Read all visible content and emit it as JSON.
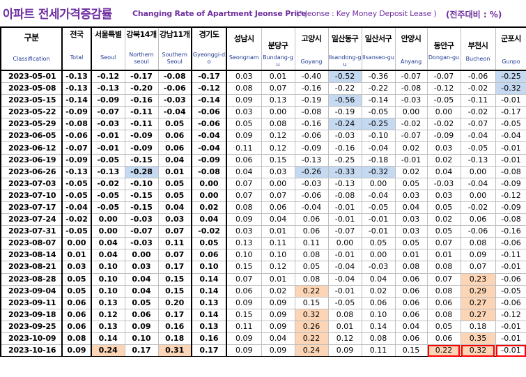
{
  "title": {
    "korean": "아파트 전세가격증감률",
    "english": "Changing Rate of Apartment Jeonse Price",
    "note": "(* Jeonse : Key Money Deposit Lease )",
    "unit": "(전주대비 : %)"
  },
  "columns": [
    {
      "key": "date",
      "ko": "구분",
      "en": "Classification"
    },
    {
      "key": "nat",
      "ko": "전국",
      "en": "Total"
    },
    {
      "key": "seoul",
      "ko": "서울특별",
      "en": "Seoul"
    },
    {
      "key": "north",
      "ko": "강북14개",
      "en": "Northern seoul"
    },
    {
      "key": "south",
      "ko": "강남11개",
      "en": "Southern Seoul"
    },
    {
      "key": "gg",
      "ko": "경기도",
      "en": "Gyeonggi-do"
    },
    {
      "key": "sn",
      "ko": "성남시",
      "en": "Seongnam"
    },
    {
      "key": "bd",
      "ko": "분당구",
      "en": "Bundang-gu"
    },
    {
      "key": "gy",
      "ko": "고양시",
      "en": "Goyang"
    },
    {
      "key": "id",
      "ko": "일산동구",
      "en": "Ilsandong-gu"
    },
    {
      "key": "is",
      "ko": "일산서구",
      "en": "Ilsanseo-gu"
    },
    {
      "key": "ay",
      "ko": "안양시",
      "en": "Anyang"
    },
    {
      "key": "da",
      "ko": "동안구",
      "en": "Dongan-gu"
    },
    {
      "key": "bc",
      "ko": "부천시",
      "en": "Bucheon"
    },
    {
      "key": "gp",
      "ko": "군포시",
      "en": "Gunpo"
    }
  ],
  "rows": [
    {
      "date": "2023-05-01",
      "v": [
        "-0.13",
        "-0.12",
        "-0.17",
        "-0.08",
        "-0.17",
        "0.03",
        "0.01",
        "-0.40",
        "-0.52",
        "-0.36",
        "-0.07",
        "-0.07",
        "-0.06",
        "-0.25"
      ]
    },
    {
      "date": "2023-05-08",
      "v": [
        "-0.13",
        "-0.13",
        "-0.20",
        "-0.06",
        "-0.12",
        "0.08",
        "0.07",
        "-0.16",
        "-0.22",
        "-0.22",
        "-0.08",
        "-0.12",
        "-0.02",
        "-0.32"
      ]
    },
    {
      "date": "2023-05-15",
      "v": [
        "-0.14",
        "-0.09",
        "-0.16",
        "-0.03",
        "-0.14",
        "0.09",
        "0.13",
        "-0.19",
        "-0.56",
        "-0.14",
        "-0.03",
        "-0.05",
        "-0.11",
        "-0.01"
      ]
    },
    {
      "date": "2023-05-22",
      "v": [
        "-0.09",
        "-0.07",
        "-0.11",
        "-0.04",
        "-0.06",
        "0.03",
        "0.00",
        "-0.08",
        "-0.19",
        "-0.05",
        "0.00",
        "0.00",
        "-0.02",
        "-0.17"
      ]
    },
    {
      "date": "2023-05-29",
      "v": [
        "-0.08",
        "-0.03",
        "-0.11",
        "0.05",
        "-0.06",
        "0.05",
        "0.08",
        "-0.16",
        "-0.24",
        "-0.25",
        "-0.02",
        "-0.02",
        "-0.07",
        "-0.05"
      ]
    },
    {
      "date": "2023-06-05",
      "v": [
        "-0.06",
        "-0.01",
        "-0.09",
        "0.06",
        "-0.04",
        "0.09",
        "0.12",
        "-0.06",
        "-0.03",
        "-0.10",
        "-0.07",
        "-0.09",
        "-0.04",
        "-0.04"
      ]
    },
    {
      "date": "2023-06-12",
      "v": [
        "-0.07",
        "-0.01",
        "-0.09",
        "0.06",
        "-0.04",
        "0.11",
        "0.12",
        "-0.09",
        "-0.16",
        "-0.04",
        "0.02",
        "0.03",
        "-0.05",
        "-0.01"
      ]
    },
    {
      "date": "2023-06-19",
      "v": [
        "-0.09",
        "-0.05",
        "-0.15",
        "0.04",
        "-0.09",
        "0.06",
        "0.15",
        "-0.13",
        "-0.25",
        "-0.18",
        "-0.01",
        "0.02",
        "-0.13",
        "-0.01"
      ]
    },
    {
      "date": "2023-06-26",
      "v": [
        "-0.13",
        "-0.13",
        "-0.28",
        "0.01",
        "-0.08",
        "0.04",
        "0.03",
        "-0.26",
        "-0.33",
        "-0.32",
        "0.02",
        "0.04",
        "0.00",
        "-0.08"
      ]
    },
    {
      "date": "2023-07-03",
      "v": [
        "-0.05",
        "-0.02",
        "-0.10",
        "0.05",
        "0.00",
        "0.07",
        "0.00",
        "-0.03",
        "-0.13",
        "0.00",
        "0.05",
        "-0.03",
        "-0.04",
        "-0.09"
      ]
    },
    {
      "date": "2023-07-10",
      "v": [
        "-0.05",
        "-0.05",
        "-0.15",
        "0.05",
        "0.00",
        "0.07",
        "0.07",
        "-0.06",
        "-0.08",
        "-0.04",
        "0.03",
        "0.03",
        "0.00",
        "-0.12"
      ]
    },
    {
      "date": "2023-07-17",
      "v": [
        "-0.04",
        "-0.05",
        "-0.15",
        "0.04",
        "0.02",
        "0.08",
        "0.06",
        "-0.04",
        "-0.01",
        "-0.05",
        "0.04",
        "0.05",
        "-0.02",
        "-0.09"
      ]
    },
    {
      "date": "2023-07-24",
      "v": [
        "-0.02",
        "0.00",
        "-0.03",
        "0.03",
        "0.04",
        "0.09",
        "0.04",
        "0.06",
        "-0.01",
        "-0.01",
        "0.03",
        "0.02",
        "0.06",
        "-0.08"
      ]
    },
    {
      "date": "2023-07-31",
      "v": [
        "-0.05",
        "0.00",
        "-0.07",
        "0.07",
        "-0.02",
        "0.03",
        "0.01",
        "0.06",
        "-0.07",
        "-0.01",
        "0.03",
        "0.05",
        "-0.06",
        "-0.16"
      ]
    },
    {
      "date": "2023-08-07",
      "v": [
        "0.00",
        "0.04",
        "-0.03",
        "0.11",
        "0.05",
        "0.13",
        "0.11",
        "0.11",
        "0.00",
        "0.05",
        "0.05",
        "0.07",
        "0.08",
        "-0.06"
      ]
    },
    {
      "date": "2023-08-14",
      "v": [
        "0.01",
        "0.04",
        "0.00",
        "0.07",
        "0.06",
        "0.10",
        "0.10",
        "0.08",
        "-0.01",
        "0.00",
        "0.01",
        "0.01",
        "0.09",
        "-0.11"
      ]
    },
    {
      "date": "2023-08-21",
      "v": [
        "0.03",
        "0.10",
        "0.03",
        "0.17",
        "0.10",
        "0.15",
        "0.12",
        "0.05",
        "-0.04",
        "-0.03",
        "0.08",
        "0.08",
        "0.07",
        "-0.01"
      ]
    },
    {
      "date": "2023-08-28",
      "v": [
        "0.05",
        "0.10",
        "0.04",
        "0.15",
        "0.14",
        "0.07",
        "0.01",
        "0.08",
        "-0.04",
        "0.04",
        "0.06",
        "0.07",
        "0.23",
        "-0.06"
      ]
    },
    {
      "date": "2023-09-04",
      "v": [
        "0.05",
        "0.10",
        "0.04",
        "0.15",
        "0.14",
        "0.06",
        "0.02",
        "0.22",
        "-0.01",
        "0.02",
        "0.06",
        "0.08",
        "0.29",
        "-0.05"
      ]
    },
    {
      "date": "2023-09-11",
      "v": [
        "0.06",
        "0.13",
        "0.05",
        "0.20",
        "0.13",
        "0.09",
        "0.09",
        "0.15",
        "-0.05",
        "0.06",
        "0.06",
        "0.06",
        "0.27",
        "-0.06"
      ]
    },
    {
      "date": "2023-09-18",
      "v": [
        "0.06",
        "0.12",
        "0.06",
        "0.17",
        "0.14",
        "0.15",
        "0.09",
        "0.32",
        "0.08",
        "0.10",
        "0.06",
        "0.08",
        "0.27",
        "-0.12"
      ]
    },
    {
      "date": "2023-09-25",
      "v": [
        "0.06",
        "0.13",
        "0.09",
        "0.16",
        "0.13",
        "0.11",
        "0.09",
        "0.26",
        "0.01",
        "0.14",
        "0.04",
        "0.05",
        "0.18",
        "-0.01"
      ]
    },
    {
      "date": "2023-10-09",
      "v": [
        "0.08",
        "0.14",
        "0.10",
        "0.18",
        "0.16",
        "0.09",
        "0.04",
        "0.22",
        "0.12",
        "0.08",
        "0.06",
        "0.06",
        "0.35",
        "-0.01"
      ]
    },
    {
      "date": "2023-10-16",
      "v": [
        "0.09",
        "0.24",
        "0.17",
        "0.31",
        "0.17",
        "0.09",
        "0.09",
        "0.24",
        "0.09",
        "0.11",
        "0.15",
        "0.22",
        "0.32",
        "-0.01"
      ]
    }
  ],
  "shading": {
    "pos_color": "#fbd5b5",
    "neg_color": "#c5d9f1",
    "highlight_color": "#ff0000",
    "pos_cells": [
      [
        17,
        12
      ],
      [
        18,
        7
      ],
      [
        18,
        12
      ],
      [
        19,
        12
      ],
      [
        20,
        7
      ],
      [
        20,
        12
      ],
      [
        21,
        7
      ],
      [
        22,
        7
      ],
      [
        22,
        12
      ],
      [
        23,
        1
      ],
      [
        23,
        3
      ],
      [
        23,
        7
      ],
      [
        23,
        11
      ],
      [
        23,
        12
      ]
    ],
    "neg_cells": [
      [
        0,
        8
      ],
      [
        0,
        13
      ],
      [
        1,
        13
      ],
      [
        2,
        8
      ],
      [
        4,
        8
      ],
      [
        4,
        9
      ],
      [
        8,
        2
      ],
      [
        8,
        7
      ],
      [
        8,
        8
      ],
      [
        8,
        9
      ]
    ]
  }
}
